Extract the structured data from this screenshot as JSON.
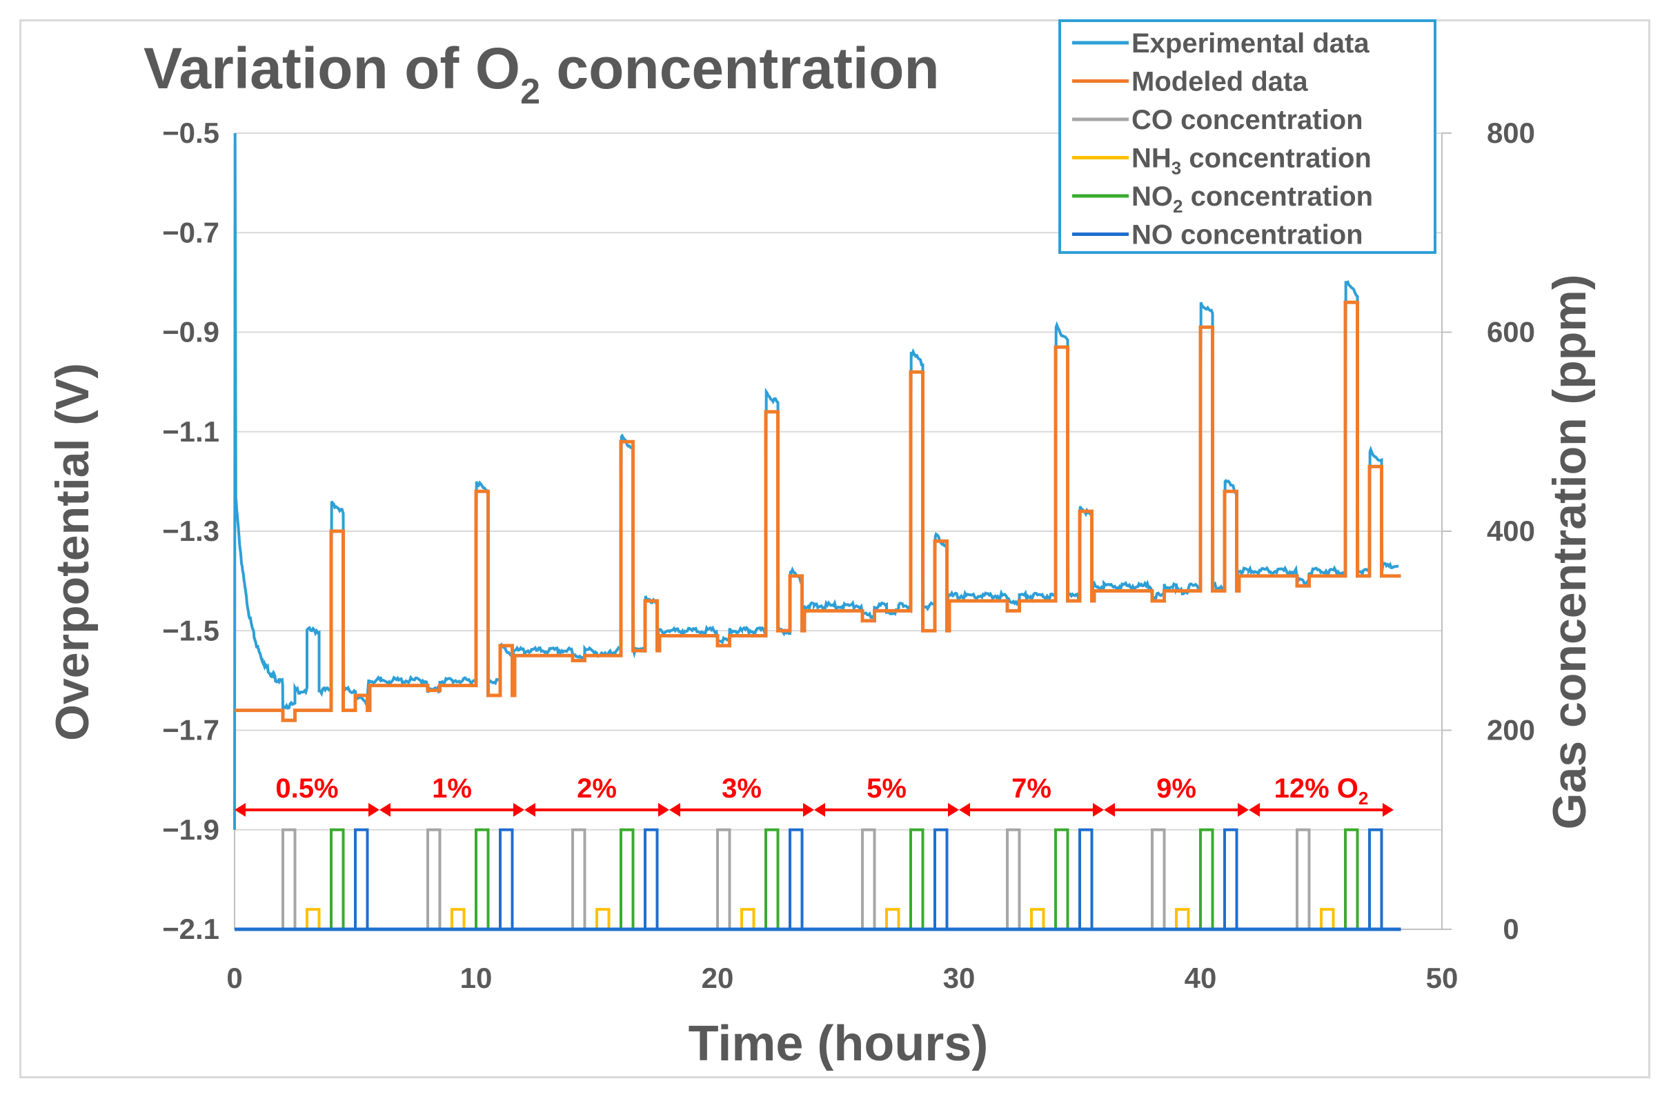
{
  "chart_data": {
    "type": "line",
    "title": "Variation of O",
    "title_sub": "2",
    "title_rest": " concentration",
    "xlabel": "Time (hours)",
    "ylabel_left": "Overpotential (V)",
    "ylabel_right": "Gas concentration (ppm)",
    "xlim": [
      0,
      50
    ],
    "ylim_left": [
      -2.1,
      -0.5
    ],
    "ylim_right": [
      0,
      800
    ],
    "x_ticks": [
      "0",
      "10",
      "20",
      "30",
      "40",
      "50"
    ],
    "x_tick_values": [
      0,
      10,
      20,
      30,
      40,
      50
    ],
    "y_left_ticks": [
      "−0.5",
      "−0.7",
      "−0.9",
      "−1.1",
      "−1.3",
      "−1.5",
      "−1.7",
      "−1.9",
      "−2.1"
    ],
    "y_left_tick_values": [
      -0.5,
      -0.7,
      -0.9,
      -1.1,
      -1.3,
      -1.5,
      -1.7,
      -1.9,
      -2.1
    ],
    "y_right_ticks": [
      "800",
      "600",
      "400",
      "200",
      "0"
    ],
    "y_right_tick_values": [
      800,
      600,
      400,
      200,
      0
    ],
    "grid": true,
    "legend_position": "top-right",
    "legend": [
      {
        "name": "Experimental data",
        "color": "#2e9fd6"
      },
      {
        "name": "Modeled data",
        "color": "#f07b2a"
      },
      {
        "name": "CO concentration",
        "color": "#a6a6a6"
      },
      {
        "name": "NH",
        "sub": "3",
        "rest": " concentration",
        "color": "#ffc000"
      },
      {
        "name": "NO",
        "sub": "2",
        "rest": " concentration",
        "color": "#3aab2f"
      },
      {
        "name": "NO concentration",
        "color": "#1f6fcf"
      }
    ],
    "segments": [
      {
        "label": "0.5%",
        "start": 0,
        "end": 6
      },
      {
        "label": "1%",
        "start": 6,
        "end": 12
      },
      {
        "label": "2%",
        "start": 12,
        "end": 18
      },
      {
        "label": "3%",
        "start": 18,
        "end": 24
      },
      {
        "label": "5%",
        "start": 24,
        "end": 30
      },
      {
        "label": "7%",
        "start": 30,
        "end": 36
      },
      {
        "label": "9%",
        "start": 36,
        "end": 42
      },
      {
        "label": "12% O",
        "sub": "2",
        "start": 42,
        "end": 48
      }
    ],
    "segment_color": "#ff0000",
    "experimental": {
      "name": "Experimental data",
      "initial_spike": [
        [
          0.0,
          -1.9
        ],
        [
          0.02,
          -0.5
        ],
        [
          0.05,
          -1.2
        ]
      ],
      "cycles": [
        {
          "base": -1.62,
          "co": -1.65,
          "nh3": -1.5,
          "no2": -1.24,
          "no": -1.63
        },
        {
          "base": -1.6,
          "co": -1.62,
          "nh3": -1.6,
          "no2": -1.2,
          "no": -1.53
        },
        {
          "base": -1.54,
          "co": -1.55,
          "nh3": -1.55,
          "no2": -1.11,
          "no": -1.43
        },
        {
          "base": -1.5,
          "co": -1.52,
          "nh3": -1.5,
          "no2": -1.02,
          "no": -1.38
        },
        {
          "base": -1.45,
          "co": -1.47,
          "nh3": -1.46,
          "no2": -0.94,
          "no": -1.31
        },
        {
          "base": -1.43,
          "co": -1.44,
          "nh3": -1.43,
          "no2": -0.89,
          "no": -1.25
        },
        {
          "base": -1.41,
          "co": -1.43,
          "nh3": -1.42,
          "no2": -0.84,
          "no": -1.2
        },
        {
          "base": -1.38,
          "co": -1.4,
          "nh3": -1.38,
          "no2": -0.8,
          "no": -1.14
        }
      ],
      "end_value": -1.37
    },
    "modeled": {
      "name": "Modeled data",
      "start_value": -1.66,
      "cycles": [
        {
          "base": -1.66,
          "dip": -1.68,
          "no2_top": -1.3,
          "no_top": -1.63,
          "low": -1.66
        },
        {
          "base": -1.61,
          "dip": -1.62,
          "no2_top": -1.22,
          "no_top": -1.53,
          "low": -1.63
        },
        {
          "base": -1.55,
          "dip": -1.56,
          "no2_top": -1.12,
          "no_top": -1.44,
          "low": -1.54
        },
        {
          "base": -1.51,
          "dip": -1.53,
          "no2_top": -1.06,
          "no_top": -1.39,
          "low": -1.5
        },
        {
          "base": -1.46,
          "dip": -1.48,
          "no2_top": -0.98,
          "no_top": -1.32,
          "low": -1.5
        },
        {
          "base": -1.44,
          "dip": -1.46,
          "no2_top": -0.93,
          "no_top": -1.26,
          "low": -1.44
        },
        {
          "base": -1.42,
          "dip": -1.44,
          "no2_top": -0.89,
          "no_top": -1.22,
          "low": -1.42
        },
        {
          "base": -1.39,
          "dip": -1.41,
          "no2_top": -0.84,
          "no_top": -1.17,
          "low": -1.39
        }
      ],
      "end_value": -1.39
    },
    "pulses_ppm": {
      "CO": {
        "offset_start": 2.0,
        "offset_end": 2.5,
        "value": 100
      },
      "NH3": {
        "offset_start": 3.0,
        "offset_end": 3.5,
        "value": 20
      },
      "NO2": {
        "offset_start": 4.0,
        "offset_end": 4.5,
        "value": 100
      },
      "NO": {
        "offset_start": 5.0,
        "offset_end": 5.5,
        "value": 100
      }
    },
    "cycle_period_hours": 6,
    "cycle_count": 8
  }
}
